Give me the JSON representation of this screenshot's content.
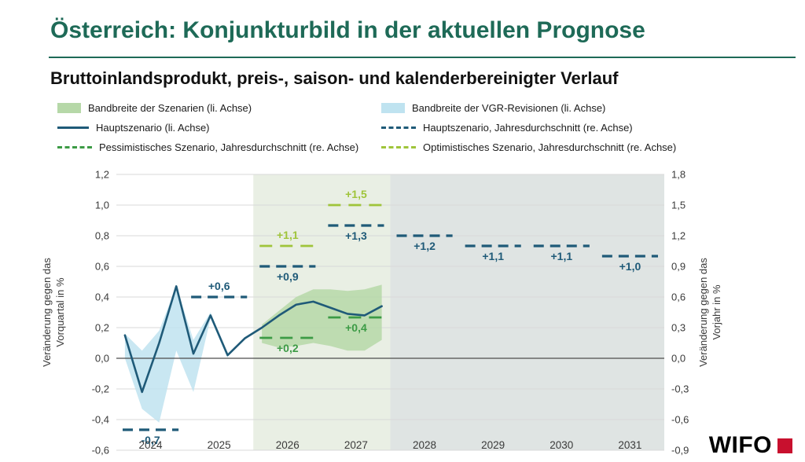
{
  "header": {
    "title": "Österreich: Konjunkturbild in der aktuellen Prognose",
    "subtitle": "Bruttoinlandsprodukt, preis-, saison- und kalenderbereinigter Verlauf"
  },
  "colors": {
    "title": "#1e6a57",
    "logo_red": "#c8102e"
  },
  "legend": [
    {
      "label": "Bandbreite der Szenarien (li. Achse)",
      "type": "band",
      "color": "#b6d8a8"
    },
    {
      "label": "Bandbreite der VGR-Revisionen (li. Achse)",
      "type": "band",
      "color": "#bfe3f0"
    },
    {
      "label": "Hauptszenario (li. Achse)",
      "type": "line",
      "color": "#1f5a78"
    },
    {
      "label": "Hauptszenario, Jahresdurchschnitt (re. Achse)",
      "type": "dashed",
      "color": "#1f5a78"
    },
    {
      "label": "Pessimistisches Szenario, Jahresdurchschnitt (re. Achse)",
      "type": "dashed",
      "color": "#3c9b45"
    },
    {
      "label": "Optimistisches Szenario, Jahresdurchschnitt (re. Achse)",
      "type": "dashed",
      "color": "#9fc43a"
    }
  ],
  "logo": {
    "text": "WIFO"
  },
  "chart_data": {
    "type": "line",
    "title": "Bruttoinlandsprodukt, preis-, saison- und kalenderbereinigter Verlauf",
    "colors": {
      "main_line": "#1f5a78",
      "pessimistic": "#3c9b45",
      "optimistic": "#9fc43a",
      "band_green": "#b6d8a8",
      "band_blue": "#bfe3f0",
      "grid": "#d8d8d8",
      "zero_line": "#4d4d4d",
      "axis_text": "#3a3a3a"
    },
    "left_axis": {
      "label_lines": [
        "Veränderung gegen das",
        "Vorquartal in %"
      ],
      "max": 1.2,
      "min": -0.6,
      "step": 0.2,
      "ticks": [
        "1,2",
        "1,0",
        "0,8",
        "0,6",
        "0,4",
        "0,2",
        "0,0",
        "-0,2",
        "-0,4",
        "-0,6"
      ]
    },
    "right_axis": {
      "label_lines": [
        "Veränderung gegen das",
        "Vorjahr in %"
      ],
      "max": 1.8,
      "min": -0.9,
      "step": 0.3,
      "ticks": [
        "1,8",
        "1,5",
        "1,2",
        "0,9",
        "0,6",
        "0,3",
        "0,0",
        "-0,3",
        "-0,6",
        "-0,9"
      ]
    },
    "years": [
      "2024",
      "2025",
      "2026",
      "2027",
      "2028",
      "2029",
      "2030",
      "2031"
    ],
    "regions": [
      {
        "name": "prognose-szenarien",
        "from_year": 2026,
        "to_year": 2028,
        "color": "#e9efe4"
      },
      {
        "name": "prognose-jahreswerte",
        "from_year": 2028,
        "to_year": 2032,
        "color": "#dfe4e3"
      }
    ],
    "quarterly_main": {
      "unit": "% gegen Vorquartal",
      "start": "2024Q1",
      "values": [
        0.15,
        -0.22,
        0.1,
        0.47,
        0.03,
        0.28,
        0.02,
        0.13,
        0.2,
        0.28,
        0.35,
        0.37,
        0.33,
        0.29,
        0.28,
        0.34
      ]
    },
    "band_vgr_revisionen": {
      "start": "2024Q1",
      "start_index": 0,
      "upper": [
        0.16,
        0.05,
        0.18,
        0.47,
        0.12,
        0.3,
        0.02
      ],
      "lower": [
        0.0,
        -0.33,
        -0.42,
        0.05,
        -0.22,
        0.26,
        0.0
      ]
    },
    "band_szenarien": {
      "start": "2026Q1",
      "start_index": 8,
      "upper": [
        0.22,
        0.31,
        0.4,
        0.45,
        0.45,
        0.44,
        0.45,
        0.48
      ],
      "lower": [
        0.1,
        0.07,
        0.08,
        0.1,
        0.08,
        0.05,
        0.05,
        0.12
      ]
    },
    "annual_series": [
      {
        "id": "hauptszenario",
        "name": "Hauptszenario, Jahresdurchschnitt (re. Achse)",
        "color": "#1f5a78",
        "dash": "13 8",
        "width": 3.2,
        "points": [
          {
            "year": 2024,
            "value": -0.7,
            "label": "-0,7",
            "label_pos": "below"
          },
          {
            "year": 2025,
            "value": 0.6,
            "label": "+0,6",
            "label_pos": "above"
          },
          {
            "year": 2026,
            "value": 0.9,
            "label": "+0,9",
            "label_pos": "below"
          },
          {
            "year": 2027,
            "value": 1.3,
            "label": "+1,3",
            "label_pos": "below"
          },
          {
            "year": 2028,
            "value": 1.2,
            "label": "+1,2",
            "label_pos": "below"
          },
          {
            "year": 2029,
            "value": 1.1,
            "label": "+1,1",
            "label_pos": "below"
          },
          {
            "year": 2030,
            "value": 1.1,
            "label": "+1,1",
            "label_pos": "below"
          },
          {
            "year": 2031,
            "value": 1.0,
            "label": "+1,0",
            "label_pos": "below"
          }
        ]
      },
      {
        "id": "pessimistisch",
        "name": "Pessimistisches Szenario, Jahresdurchschnitt (re. Achse)",
        "color": "#3c9b45",
        "dash": "16 10",
        "width": 2.8,
        "points": [
          {
            "year": 2026,
            "value": 0.2,
            "label": "+0,2",
            "label_pos": "below"
          },
          {
            "year": 2027,
            "value": 0.4,
            "label": "+0,4",
            "label_pos": "below"
          }
        ]
      },
      {
        "id": "optimistisch",
        "name": "Optimistisches Szenario, Jahresdurchschnitt (re. Achse)",
        "color": "#9fc43a",
        "dash": "16 10",
        "width": 2.8,
        "points": [
          {
            "year": 2026,
            "value": 1.1,
            "label": "+1,1",
            "label_pos": "above"
          },
          {
            "year": 2027,
            "value": 1.5,
            "label": "+1,5",
            "label_pos": "above"
          }
        ]
      }
    ]
  }
}
